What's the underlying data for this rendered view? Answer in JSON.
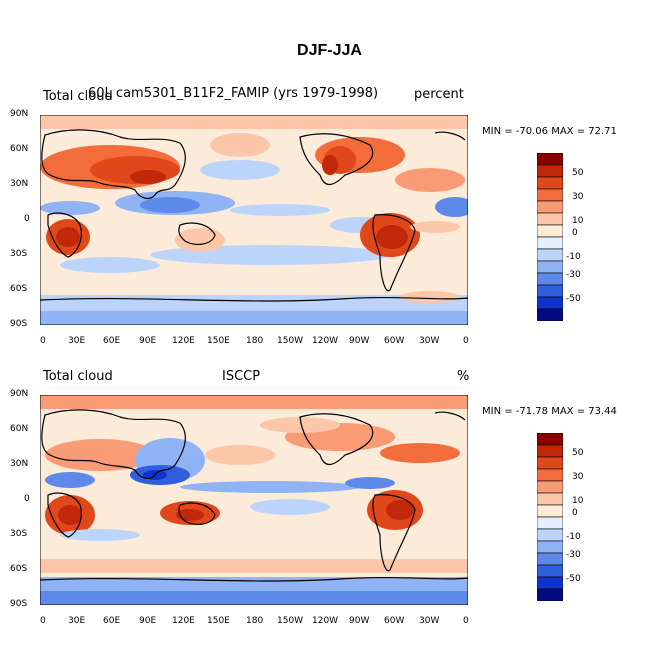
{
  "figure": {
    "title": "DJF-JJA"
  },
  "colorbar": {
    "labels": [
      "50",
      "30",
      "10",
      "0",
      "-10",
      "-30",
      "-50"
    ],
    "colors": [
      "#8b0000",
      "#c1280a",
      "#e0471a",
      "#f36c3c",
      "#f99c76",
      "#fcc7a9",
      "#fdebd9",
      "#e4eefc",
      "#bcd3fa",
      "#8fb3f4",
      "#5d8ae8",
      "#2f5fdd",
      "#0d33cc",
      "#000b80"
    ]
  },
  "axes": {
    "lat_labels": [
      "90N",
      "60N",
      "30N",
      "0",
      "30S",
      "60S",
      "90S"
    ],
    "lon_labels": [
      "0",
      "30E",
      "60E",
      "90E",
      "120E",
      "150E",
      "180",
      "150W",
      "120W",
      "90W",
      "60W",
      "30W",
      "0"
    ]
  },
  "panels": [
    {
      "left_label": "Total cloud",
      "center_label": "60L cam5301_B11F2_FAMIP (yrs 1979-1998)",
      "right_label": "percent",
      "min_max": "MIN = -70.06  MAX =  72.71"
    },
    {
      "left_label": "Total cloud",
      "center_label": "ISCCP",
      "right_label": "%",
      "min_max": "MIN = -71.78  MAX =  73.44"
    }
  ]
}
